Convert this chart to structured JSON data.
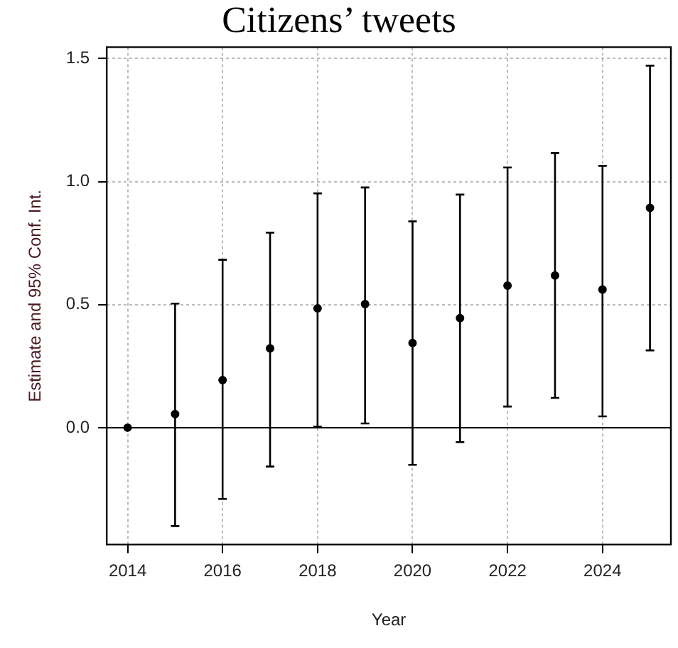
{
  "chart_data": {
    "type": "scatter",
    "title": "Citizens’ tweets",
    "xlabel": "Year",
    "ylabel": "Estimate and 95% Conf. Int.",
    "x": [
      2014,
      2015,
      2016,
      2017,
      2018,
      2019,
      2020,
      2021,
      2022,
      2023,
      2024,
      2025
    ],
    "series": [
      {
        "color": "#000000",
        "values": [
          0,
          0.055,
          0.193,
          0.322,
          0.485,
          0.502,
          0.344,
          0.445,
          0.577,
          0.618,
          0.561,
          0.893
        ],
        "errors": [
          null,
          [
            -0.4,
            0.504
          ],
          [
            -0.29,
            0.682
          ],
          [
            -0.158,
            0.792
          ],
          [
            0.004,
            0.952
          ],
          [
            0.017,
            0.976
          ],
          [
            -0.151,
            0.838
          ],
          [
            -0.059,
            0.947
          ],
          [
            0.086,
            1.057
          ],
          [
            0.121,
            1.116
          ],
          [
            0.046,
            1.064
          ],
          [
            0.314,
            1.471
          ]
        ]
      }
    ],
    "xlim": [
      2013.56,
      2025.44
    ],
    "xticks": [
      2014,
      2016,
      2018,
      2020,
      2022,
      2024
    ],
    "ylim": [
      -0.475,
      1.546
    ],
    "yticks": [
      {
        "value": 0,
        "label": "0.0"
      },
      {
        "value": 0.5,
        "label": "0.5"
      },
      {
        "value": 1,
        "label": "1.0"
      },
      {
        "value": 1.5,
        "label": "1.5"
      }
    ],
    "ref_lines": [
      {
        "axis": "y",
        "value": 0,
        "color": "#000000"
      }
    ],
    "grid": true,
    "marker": "circle",
    "legend": false
  }
}
